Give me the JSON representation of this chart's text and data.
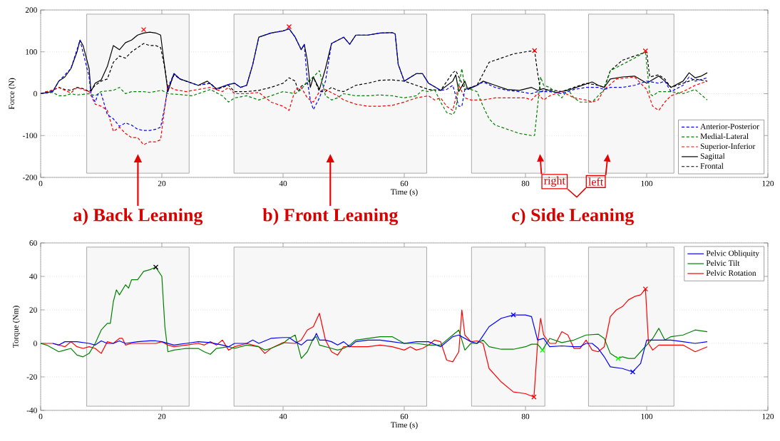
{
  "chart_data": [
    {
      "type": "line",
      "xlabel": "Time (s)",
      "ylabel": "Force (N)",
      "xlim": [
        0,
        120
      ],
      "xticks": [
        0,
        20,
        40,
        60,
        80,
        100,
        120
      ],
      "ylim": [
        -200,
        200
      ],
      "yticks": [
        -200,
        -100,
        0,
        100,
        200
      ],
      "grid": true,
      "legend": "bottom right",
      "series": [
        {
          "name": "Anterior-Posterior",
          "color": "#0000ff",
          "line_style": "dashed",
          "x": [
            0,
            2,
            3,
            5,
            6.5,
            8,
            8.3,
            9,
            9.5,
            10,
            11,
            12,
            13,
            14,
            15,
            16,
            17,
            18,
            19,
            19.8,
            20.5,
            21,
            22,
            23,
            24,
            26,
            28,
            29,
            31,
            32,
            33,
            34,
            35,
            36,
            38,
            40,
            41,
            42,
            43,
            43.5,
            44,
            44.5,
            45,
            46,
            47,
            48,
            50,
            51,
            52,
            54,
            56,
            58,
            58.5,
            59,
            60,
            62,
            63,
            64,
            66,
            67,
            68,
            69,
            69.5,
            70,
            72,
            73,
            75,
            77,
            79,
            81,
            82,
            84,
            86,
            88,
            90,
            92,
            93,
            94,
            96,
            98,
            100,
            102,
            103,
            104,
            106,
            107,
            108,
            110
          ],
          "values": [
            0,
            5,
            30,
            60,
            128,
            40,
            0,
            -20,
            0,
            0,
            -50,
            -60,
            -78,
            -70,
            -75,
            -85,
            -88,
            -88,
            -85,
            -80,
            -30,
            15,
            48,
            35,
            30,
            20,
            25,
            10,
            22,
            25,
            15,
            20,
            70,
            135,
            145,
            150,
            155,
            135,
            105,
            118,
            30,
            -15,
            -38,
            -10,
            30,
            120,
            135,
            118,
            140,
            140,
            145,
            146,
            143,
            70,
            30,
            48,
            48,
            25,
            8,
            10,
            20,
            -30,
            -30,
            10,
            20,
            28,
            15,
            8,
            5,
            0,
            5,
            5,
            0,
            10,
            15,
            15,
            10,
            15,
            15,
            20,
            30,
            25,
            30,
            5,
            20,
            40,
            30,
            38
          ]
        },
        {
          "name": "Medial-Lateral",
          "color": "#008000",
          "line_style": "dashed",
          "x": [
            0,
            2,
            3,
            4,
            5,
            6,
            8,
            9,
            10,
            12,
            13,
            14,
            15,
            17,
            18,
            20,
            21,
            23,
            25,
            27,
            28,
            30,
            31,
            32,
            34,
            36,
            37,
            38,
            40,
            42,
            43,
            44,
            45,
            46,
            47,
            48,
            49,
            50,
            52,
            54,
            56,
            58,
            60,
            62,
            63,
            64,
            65,
            66,
            67,
            68,
            68.5,
            69,
            69.5,
            70,
            71,
            72,
            73,
            74,
            75,
            77,
            79,
            81,
            81.5,
            82,
            82.5,
            83,
            84,
            86,
            87,
            88,
            89,
            90,
            91,
            92,
            93,
            94,
            96,
            98,
            99.8,
            100.5,
            101,
            102,
            104,
            106,
            108,
            110
          ],
          "values": [
            0,
            3,
            -5,
            -5,
            0,
            -3,
            0,
            -5,
            5,
            8,
            15,
            0,
            5,
            5,
            3,
            8,
            0,
            -2,
            -5,
            5,
            10,
            -5,
            -20,
            -10,
            -5,
            -15,
            -10,
            -5,
            5,
            0,
            10,
            30,
            40,
            55,
            -5,
            -15,
            -10,
            0,
            -5,
            -5,
            -3,
            -5,
            -10,
            -5,
            8,
            5,
            10,
            -20,
            -45,
            -50,
            -40,
            20,
            60,
            15,
            10,
            5,
            -30,
            -60,
            -75,
            -85,
            -95,
            -100,
            -100,
            -30,
            40,
            20,
            15,
            -10,
            10,
            -10,
            -20,
            -20,
            -20,
            -5,
            10,
            55,
            70,
            85,
            100,
            0,
            -5,
            5,
            5,
            0,
            10,
            -15
          ]
        },
        {
          "name": "Superior-Inferior",
          "color": "#ff0000",
          "line_style": "dashed",
          "x": [
            0,
            1,
            2,
            3,
            4,
            5,
            6,
            7,
            8,
            9,
            10,
            11,
            12,
            13,
            14,
            15,
            16,
            17,
            18,
            19,
            19.8,
            20.5,
            21,
            22,
            24,
            26,
            28,
            30,
            31,
            32,
            34,
            36,
            38,
            40,
            41,
            42,
            43,
            44,
            45,
            46,
            47,
            49,
            50,
            52,
            54,
            56,
            58,
            60,
            62,
            64,
            65,
            66,
            67,
            68,
            69,
            70,
            71,
            73,
            75,
            78,
            80,
            81,
            82,
            83,
            84,
            86,
            88,
            90,
            91,
            92,
            93,
            95,
            98,
            100,
            101,
            102,
            103,
            104,
            106,
            108,
            110
          ],
          "values": [
            0,
            5,
            8,
            15,
            8,
            2,
            15,
            10,
            5,
            -25,
            -30,
            -40,
            -90,
            -80,
            -95,
            -105,
            -105,
            -122,
            -115,
            -115,
            -110,
            -30,
            20,
            10,
            5,
            10,
            15,
            5,
            15,
            0,
            0,
            3,
            -20,
            -30,
            -40,
            10,
            15,
            -10,
            -20,
            5,
            10,
            -5,
            -15,
            -25,
            -30,
            -30,
            -28,
            -20,
            -10,
            -5,
            -15,
            -10,
            -30,
            -40,
            20,
            -10,
            -15,
            -15,
            -10,
            -10,
            -10,
            -15,
            0,
            -15,
            -5,
            5,
            -10,
            -15,
            -20,
            -15,
            10,
            35,
            40,
            10,
            -30,
            -40,
            -20,
            -5,
            5,
            20,
            30
          ]
        },
        {
          "name": "Sagittal",
          "color": "#000000",
          "line_style": "solid",
          "x": [
            0,
            1,
            2,
            3,
            4,
            5,
            6,
            6.5,
            7,
            8,
            8.3,
            9,
            10,
            11,
            12,
            13,
            14,
            15,
            16,
            17,
            18,
            19,
            19.8,
            20.5,
            21,
            22,
            23,
            24,
            26,
            27.5,
            29,
            31,
            32,
            33,
            34,
            35,
            36,
            38,
            40,
            41,
            42,
            43,
            43.5,
            44,
            44.5,
            45,
            46,
            47,
            48,
            50,
            51,
            52,
            54,
            56,
            58,
            58.5,
            59,
            60,
            62,
            63,
            64,
            66,
            68,
            68.5,
            69,
            70,
            70.5,
            72,
            73,
            75,
            77,
            79,
            81,
            82,
            83,
            85,
            87,
            89,
            91,
            92,
            93,
            94,
            96,
            98,
            100,
            102,
            103,
            104,
            106,
            107,
            108,
            109,
            110
          ],
          "values": [
            0,
            3,
            5,
            30,
            40,
            60,
            100,
            128,
            115,
            60,
            5,
            25,
            33,
            65,
            115,
            105,
            122,
            128,
            140,
            145,
            147,
            145,
            140,
            60,
            5,
            48,
            35,
            30,
            20,
            30,
            12,
            22,
            25,
            15,
            20,
            70,
            135,
            145,
            150,
            155,
            135,
            105,
            118,
            80,
            15,
            40,
            10,
            60,
            120,
            135,
            118,
            140,
            140,
            145,
            146,
            143,
            70,
            30,
            48,
            48,
            25,
            8,
            30,
            45,
            5,
            30,
            10,
            20,
            30,
            20,
            10,
            8,
            15,
            8,
            12,
            3,
            8,
            18,
            28,
            20,
            15,
            35,
            40,
            42,
            25,
            42,
            30,
            15,
            30,
            50,
            38,
            42,
            50
          ]
        },
        {
          "name": "Frontal",
          "color": "#000000",
          "line_style": "dashed",
          "x": [
            0,
            1,
            2,
            3,
            4,
            5,
            6,
            7,
            8,
            9,
            10,
            11,
            12,
            13,
            14,
            15,
            16,
            17,
            18,
            19,
            19.8,
            20.5,
            21,
            22,
            23,
            24,
            26,
            28,
            29,
            31,
            32,
            34,
            36,
            38,
            40,
            41,
            42,
            42.5,
            43,
            44,
            45,
            46,
            47,
            48,
            49,
            50,
            52,
            54,
            56,
            58,
            60,
            62,
            64,
            66,
            68,
            68.5,
            69,
            70,
            71,
            72,
            74,
            76,
            78,
            80,
            81.5,
            82,
            82.5,
            84,
            86,
            88,
            90,
            92,
            93,
            94,
            96,
            98,
            100,
            100.5,
            102,
            103,
            104,
            106,
            108,
            110
          ],
          "values": [
            0,
            5,
            8,
            15,
            10,
            8,
            15,
            12,
            5,
            20,
            30,
            35,
            75,
            90,
            85,
            100,
            110,
            120,
            115,
            115,
            110,
            60,
            10,
            45,
            35,
            30,
            20,
            25,
            10,
            20,
            5,
            5,
            8,
            15,
            25,
            38,
            30,
            5,
            18,
            25,
            40,
            5,
            5,
            15,
            8,
            5,
            20,
            25,
            32,
            33,
            30,
            20,
            10,
            8,
            50,
            55,
            40,
            10,
            15,
            20,
            75,
            85,
            95,
            100,
            103,
            50,
            5,
            10,
            5,
            15,
            25,
            20,
            15,
            55,
            80,
            90,
            100,
            40,
            45,
            35,
            15,
            25,
            35,
            30
          ]
        },
        {
          "type": "scatter",
          "color": "#ff0000",
          "marker": "cross",
          "x": [
            17,
            41,
            81.5,
            99.8
          ],
          "values": [
            153,
            160,
            103,
            102
          ]
        }
      ],
      "bands": [
        {
          "axis": "x",
          "from": 7.6,
          "to": 24.5,
          "label": "a) Back Leaning",
          "color": "#808080"
        },
        {
          "axis": "x",
          "from": 31.9,
          "to": 63.7,
          "label": "b) Front Leaning",
          "color": "#808080"
        },
        {
          "axis": "x",
          "from": 71.1,
          "to": 83.2,
          "label": "right",
          "color": "#808080"
        },
        {
          "axis": "x",
          "from": 90.4,
          "to": 104.5,
          "label": "left",
          "color": "#808080"
        }
      ],
      "annotations": [
        "c) Side Leaning"
      ]
    },
    {
      "type": "line",
      "xlabel": "Time (s)",
      "ylabel": "Torque (Nm)",
      "xlim": [
        0,
        120
      ],
      "xticks": [
        0,
        20,
        40,
        60,
        80,
        100,
        120
      ],
      "ylim": [
        -40,
        60
      ],
      "yticks": [
        -40,
        -20,
        0,
        20,
        40,
        60
      ],
      "grid": true,
      "legend": "top right",
      "series": [
        {
          "name": "Pelvic Obliquity",
          "color": "#0000ff",
          "line_style": "solid",
          "x": [
            2,
            3,
            4,
            6,
            8,
            9,
            10,
            11,
            12,
            13,
            14,
            16,
            18,
            19,
            20,
            22,
            24,
            26,
            28,
            30,
            31,
            32,
            34,
            35,
            36,
            38,
            40,
            41,
            42,
            43,
            44,
            45,
            45.5,
            46,
            47,
            48,
            49,
            50,
            51,
            52,
            54,
            56,
            58,
            60,
            62,
            64,
            66,
            68,
            69,
            70,
            71,
            72,
            72.5,
            74,
            76,
            78,
            80,
            81,
            82,
            83,
            84,
            86,
            88,
            89,
            90,
            91,
            92,
            93,
            94,
            96,
            97.7,
            99,
            100,
            102,
            104,
            106,
            108,
            110
          ],
          "values": [
            0,
            -1,
            1,
            1,
            0,
            -1,
            1.5,
            0,
            0,
            1.5,
            0,
            1,
            1.5,
            1.5,
            1,
            -1,
            0,
            1,
            0.5,
            -1,
            -2,
            0,
            0,
            2,
            0,
            3,
            3.5,
            3.5,
            1,
            -1,
            2,
            2,
            6,
            2,
            2,
            1,
            -1,
            1,
            -2,
            1,
            2,
            2,
            1,
            0,
            1,
            1,
            -2,
            4,
            5,
            3,
            1,
            0,
            2,
            10,
            15,
            17,
            17,
            16,
            2,
            3,
            -2,
            -1.5,
            -2,
            -2,
            0,
            0,
            -3,
            -8,
            -14,
            -15,
            -17,
            -12,
            2,
            2,
            2,
            1,
            0,
            1
          ]
        },
        {
          "name": "Pelvic Tilt",
          "color": "#008000",
          "line_style": "solid",
          "x": [
            0,
            1,
            2,
            3,
            4,
            5,
            6,
            7,
            8,
            9,
            10,
            11,
            11.5,
            12,
            12.5,
            13,
            14,
            14.5,
            15,
            16,
            17,
            18,
            19,
            20,
            20.5,
            21,
            22,
            24,
            26,
            27,
            28,
            29,
            31,
            32,
            34,
            36,
            37,
            38,
            40,
            41,
            42,
            43,
            44,
            45,
            45.5,
            46,
            48,
            49,
            50,
            51,
            52,
            54,
            56,
            58,
            60,
            62,
            64,
            66,
            68,
            69,
            70,
            71,
            72,
            73,
            74,
            76,
            78,
            80,
            81,
            82,
            82.8,
            84,
            86,
            88,
            90,
            92,
            93,
            94,
            95.3,
            96,
            97,
            98,
            99,
            100,
            101,
            102,
            103,
            104,
            106,
            108,
            110
          ],
          "values": [
            0,
            -1,
            -3,
            -5,
            -4,
            -3,
            -7,
            -8,
            -6,
            0,
            8,
            12,
            12,
            25,
            32,
            29,
            35,
            33,
            38,
            38,
            43,
            44,
            45.5,
            40,
            10,
            -5,
            -4,
            -3,
            -3,
            -5,
            -6.5,
            -3,
            -2,
            -3,
            -1,
            -2,
            -4,
            -3,
            0,
            3,
            5,
            -9,
            -5,
            3,
            4,
            -1,
            -3,
            -4,
            -3,
            -1,
            2,
            3,
            4,
            4,
            0,
            0,
            -1,
            -1,
            5,
            8,
            -4,
            0,
            0,
            2,
            -2,
            -3.5,
            -3.5,
            -2,
            -0.5,
            -0.5,
            -4,
            3,
            0.5,
            2,
            5,
            5.5,
            3,
            -6,
            -9,
            -8,
            -9,
            -9,
            -5,
            -1,
            3,
            9,
            2,
            4,
            5,
            8,
            7
          ]
        },
        {
          "name": "Pelvic Rotation",
          "color": "#ff0000",
          "line_style": "solid",
          "x": [
            0,
            2,
            4,
            5,
            6,
            7,
            8,
            9,
            10,
            11,
            12,
            13,
            13.5,
            14,
            15,
            17,
            19,
            20,
            21,
            22,
            24,
            26,
            27,
            28,
            29,
            30,
            31,
            32,
            34,
            36,
            37,
            38,
            40,
            42,
            43,
            44,
            45,
            46,
            46.5,
            47,
            48,
            49,
            50,
            52,
            54,
            56,
            58,
            60,
            61,
            62,
            63,
            64,
            65,
            66,
            67,
            68,
            69,
            69.5,
            70,
            71,
            72,
            73,
            74,
            76,
            78,
            80,
            81.4,
            82,
            82.5,
            83,
            84,
            85,
            86,
            87,
            88,
            89,
            90,
            91,
            92,
            93,
            94,
            95,
            96,
            97,
            98,
            99,
            99.8,
            100.3,
            101,
            102,
            104,
            106,
            108,
            110
          ],
          "values": [
            0,
            0,
            -2,
            1,
            -2,
            -3,
            -2,
            -3,
            -6,
            1,
            0,
            3,
            3,
            -1,
            0,
            0,
            0,
            1,
            -1,
            -2,
            -1,
            0,
            -1,
            1,
            -1,
            2,
            -4,
            -2,
            0,
            -2,
            -6,
            -3,
            0.5,
            0,
            2,
            8,
            10,
            18,
            10,
            2,
            -5,
            -7,
            -2,
            -2,
            -2,
            -1,
            -2,
            -4,
            -2,
            -4,
            -3,
            -1,
            2,
            1,
            -10,
            -11,
            -5,
            20,
            5,
            1,
            1.5,
            0,
            -15,
            -23,
            -29,
            -30,
            -32,
            0,
            15,
            5,
            0,
            0,
            7,
            5,
            -3,
            -3,
            2,
            -4,
            -5,
            -2,
            16,
            20,
            22,
            26,
            28,
            29,
            32.5,
            0,
            -4,
            -1,
            -1,
            -1,
            -5,
            -2
          ]
        },
        {
          "type": "scatter",
          "color": "#000000",
          "marker": "cross",
          "x": [
            19
          ],
          "values": [
            45.5
          ]
        },
        {
          "type": "scatter",
          "color": "#0000ff",
          "marker": "cross",
          "x": [
            78,
            97.7
          ],
          "values": [
            17,
            -17
          ]
        },
        {
          "type": "scatter",
          "color": "#00ff00",
          "marker": "cross",
          "x": [
            82.8,
            95.3
          ],
          "values": [
            -4,
            -9
          ]
        },
        {
          "type": "scatter",
          "color": "#ff0000",
          "marker": "cross",
          "x": [
            81.4,
            99.8
          ],
          "values": [
            -32,
            32.5
          ]
        }
      ],
      "bands": [
        {
          "axis": "x",
          "from": 7.6,
          "to": 24.5,
          "color": "#808080"
        },
        {
          "axis": "x",
          "from": 31.9,
          "to": 63.7,
          "color": "#808080"
        },
        {
          "axis": "x",
          "from": 71.1,
          "to": 83.2,
          "color": "#808080"
        },
        {
          "axis": "x",
          "from": 90.4,
          "to": 104.5,
          "color": "#808080"
        }
      ]
    }
  ]
}
